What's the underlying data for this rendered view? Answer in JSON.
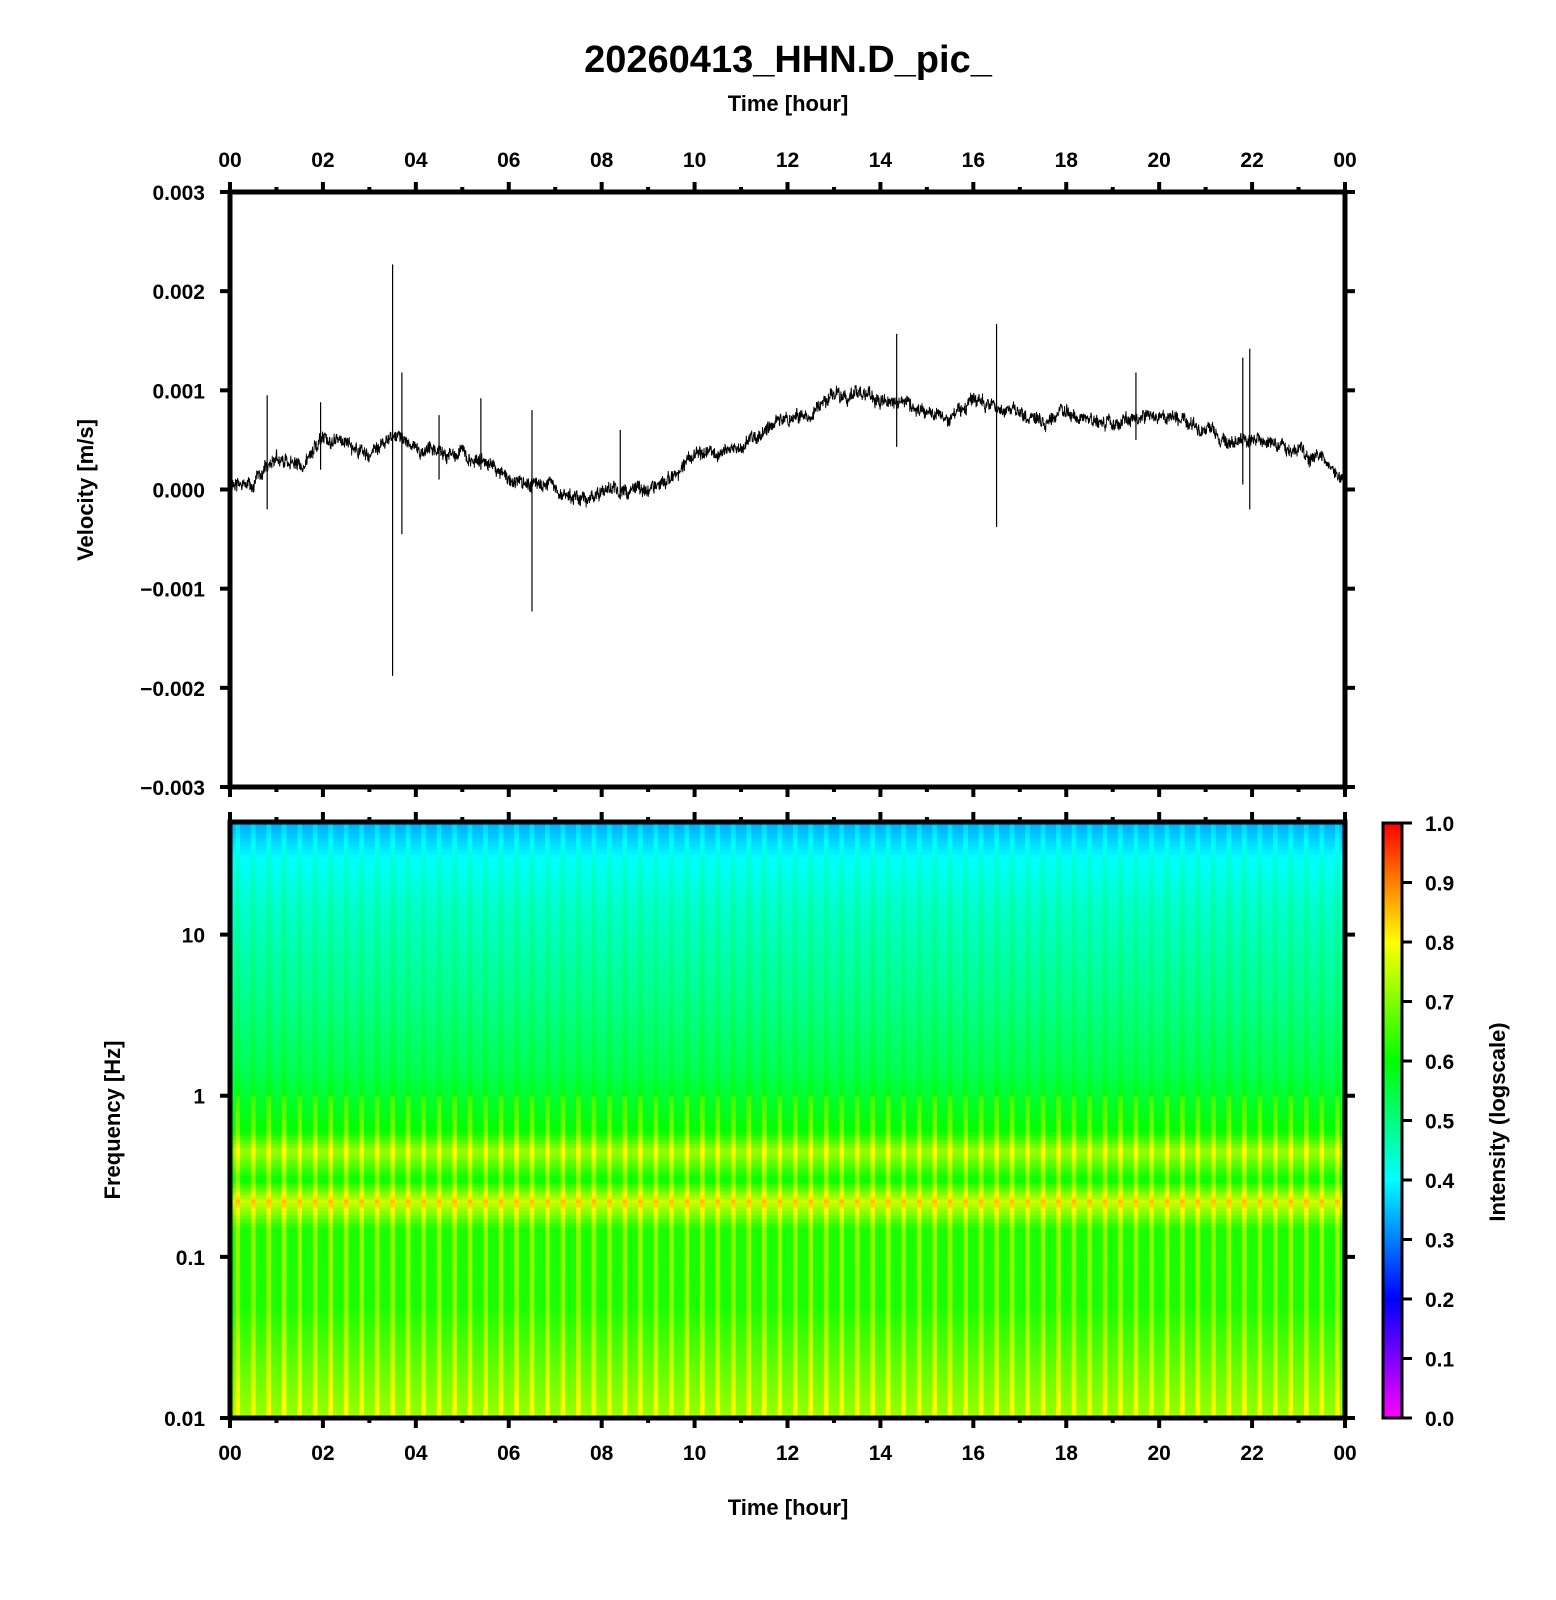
{
  "title": "20260413_HHN.D_pic_",
  "top_axis_label": "Time [hour]",
  "bottom_axis_label": "Time [hour]",
  "chart_data": [
    {
      "type": "line",
      "name": "velocity-waveform",
      "ylabel": "Velocity [m/s]",
      "xlabel": "Time [hour]",
      "xlim": [
        0,
        24
      ],
      "ylim": [
        -0.003,
        0.003
      ],
      "xticks": [
        "00",
        "02",
        "04",
        "06",
        "08",
        "10",
        "12",
        "14",
        "16",
        "18",
        "20",
        "22",
        "00"
      ],
      "yticks": [
        "0.003",
        "0.002",
        "0.001",
        "0.000",
        "−0.001",
        "−0.002",
        "−0.003"
      ],
      "baseline": {
        "x": [
          0,
          0.5,
          1,
          1.5,
          2,
          2.5,
          3,
          3.5,
          4,
          4.5,
          5,
          5.5,
          6,
          6.5,
          7,
          7.5,
          8,
          8.5,
          9,
          9.5,
          10,
          10.5,
          11,
          11.5,
          12,
          12.5,
          13,
          13.5,
          14,
          14.5,
          15,
          15.5,
          16,
          16.5,
          17,
          17.5,
          18,
          18.5,
          19,
          19.5,
          20,
          20.5,
          21,
          21.5,
          22,
          22.5,
          23,
          23.5,
          24
        ],
        "y": [
          5e-05,
          0.0001,
          0.0003,
          0.00025,
          0.0005,
          0.00045,
          0.0003,
          0.00055,
          0.00045,
          0.0004,
          0.00035,
          0.0003,
          0.0001,
          5e-05,
          0.0,
          -0.0001,
          0.0,
          0.0,
          0.0,
          0.0001,
          0.00035,
          0.0004,
          0.0004,
          0.0006,
          0.0007,
          0.00075,
          0.00095,
          0.00095,
          0.0009,
          0.0009,
          0.0008,
          0.00075,
          0.0009,
          0.0008,
          0.00075,
          0.0007,
          0.00075,
          0.0007,
          0.00065,
          0.0007,
          0.00075,
          0.0007,
          0.0006,
          0.0005,
          0.0005,
          0.00045,
          0.0004,
          0.0003,
          0.0001
        ]
      },
      "noise_amplitude": 0.00012,
      "spikes": [
        {
          "x": 0.8,
          "ymin": -0.0002,
          "ymax": 0.00095
        },
        {
          "x": 1.95,
          "ymin": 0.0002,
          "ymax": 0.00088
        },
        {
          "x": 3.5,
          "ymin": -0.00188,
          "ymax": 0.00227
        },
        {
          "x": 3.7,
          "ymin": -0.00045,
          "ymax": 0.00118
        },
        {
          "x": 4.5,
          "ymin": 0.0001,
          "ymax": 0.00075
        },
        {
          "x": 5.4,
          "ymin": 0.0002,
          "ymax": 0.00092
        },
        {
          "x": 6.5,
          "ymin": -0.00123,
          "ymax": 0.0008
        },
        {
          "x": 8.4,
          "ymin": -0.0001,
          "ymax": 0.0006
        },
        {
          "x": 14.35,
          "ymin": 0.00043,
          "ymax": 0.00157
        },
        {
          "x": 16.5,
          "ymin": -0.00038,
          "ymax": 0.00167
        },
        {
          "x": 19.5,
          "ymin": 0.0005,
          "ymax": 0.00118
        },
        {
          "x": 21.8,
          "ymin": 5e-05,
          "ymax": 0.00133
        },
        {
          "x": 21.95,
          "ymin": -0.0002,
          "ymax": 0.00142
        }
      ]
    },
    {
      "type": "heatmap",
      "name": "spectrogram",
      "ylabel": "Frequency [Hz]",
      "xlabel": "Time [hour]",
      "xlim": [
        0,
        24
      ],
      "ylim": [
        0.01,
        50
      ],
      "yscale": "log",
      "xticks": [
        "00",
        "02",
        "04",
        "06",
        "08",
        "10",
        "12",
        "14",
        "16",
        "18",
        "20",
        "22",
        "00"
      ],
      "yticks": [
        {
          "value": 10,
          "label": "10"
        },
        {
          "value": 1,
          "label": "1"
        },
        {
          "value": 0.1,
          "label": "0.1"
        },
        {
          "value": 0.01,
          "label": "0.01"
        }
      ],
      "periodic_columns": 72,
      "intensity_profile": [
        {
          "freq": 50,
          "intensity": 0.33
        },
        {
          "freq": 30,
          "intensity": 0.4
        },
        {
          "freq": 15,
          "intensity": 0.44
        },
        {
          "freq": 5,
          "intensity": 0.48
        },
        {
          "freq": 1.5,
          "intensity": 0.53
        },
        {
          "freq": 0.6,
          "intensity": 0.6
        },
        {
          "freq": 0.45,
          "intensity": 0.72
        },
        {
          "freq": 0.3,
          "intensity": 0.6
        },
        {
          "freq": 0.22,
          "intensity": 0.76
        },
        {
          "freq": 0.15,
          "intensity": 0.62
        },
        {
          "freq": 0.05,
          "intensity": 0.62
        },
        {
          "freq": 0.01,
          "intensity": 0.72
        }
      ],
      "colorbar": {
        "label": "Intensity (logscale)",
        "range": [
          0,
          1
        ],
        "ticks": [
          "1.0",
          "0.9",
          "0.8",
          "0.7",
          "0.6",
          "0.5",
          "0.4",
          "0.3",
          "0.2",
          "0.1",
          "0.0"
        ],
        "stops": [
          "#ff00ff",
          "#8000ff",
          "#0000ff",
          "#0080ff",
          "#00ffff",
          "#00ff80",
          "#00ff00",
          "#80ff00",
          "#ffff00",
          "#ff8000",
          "#ff0000"
        ]
      }
    }
  ]
}
